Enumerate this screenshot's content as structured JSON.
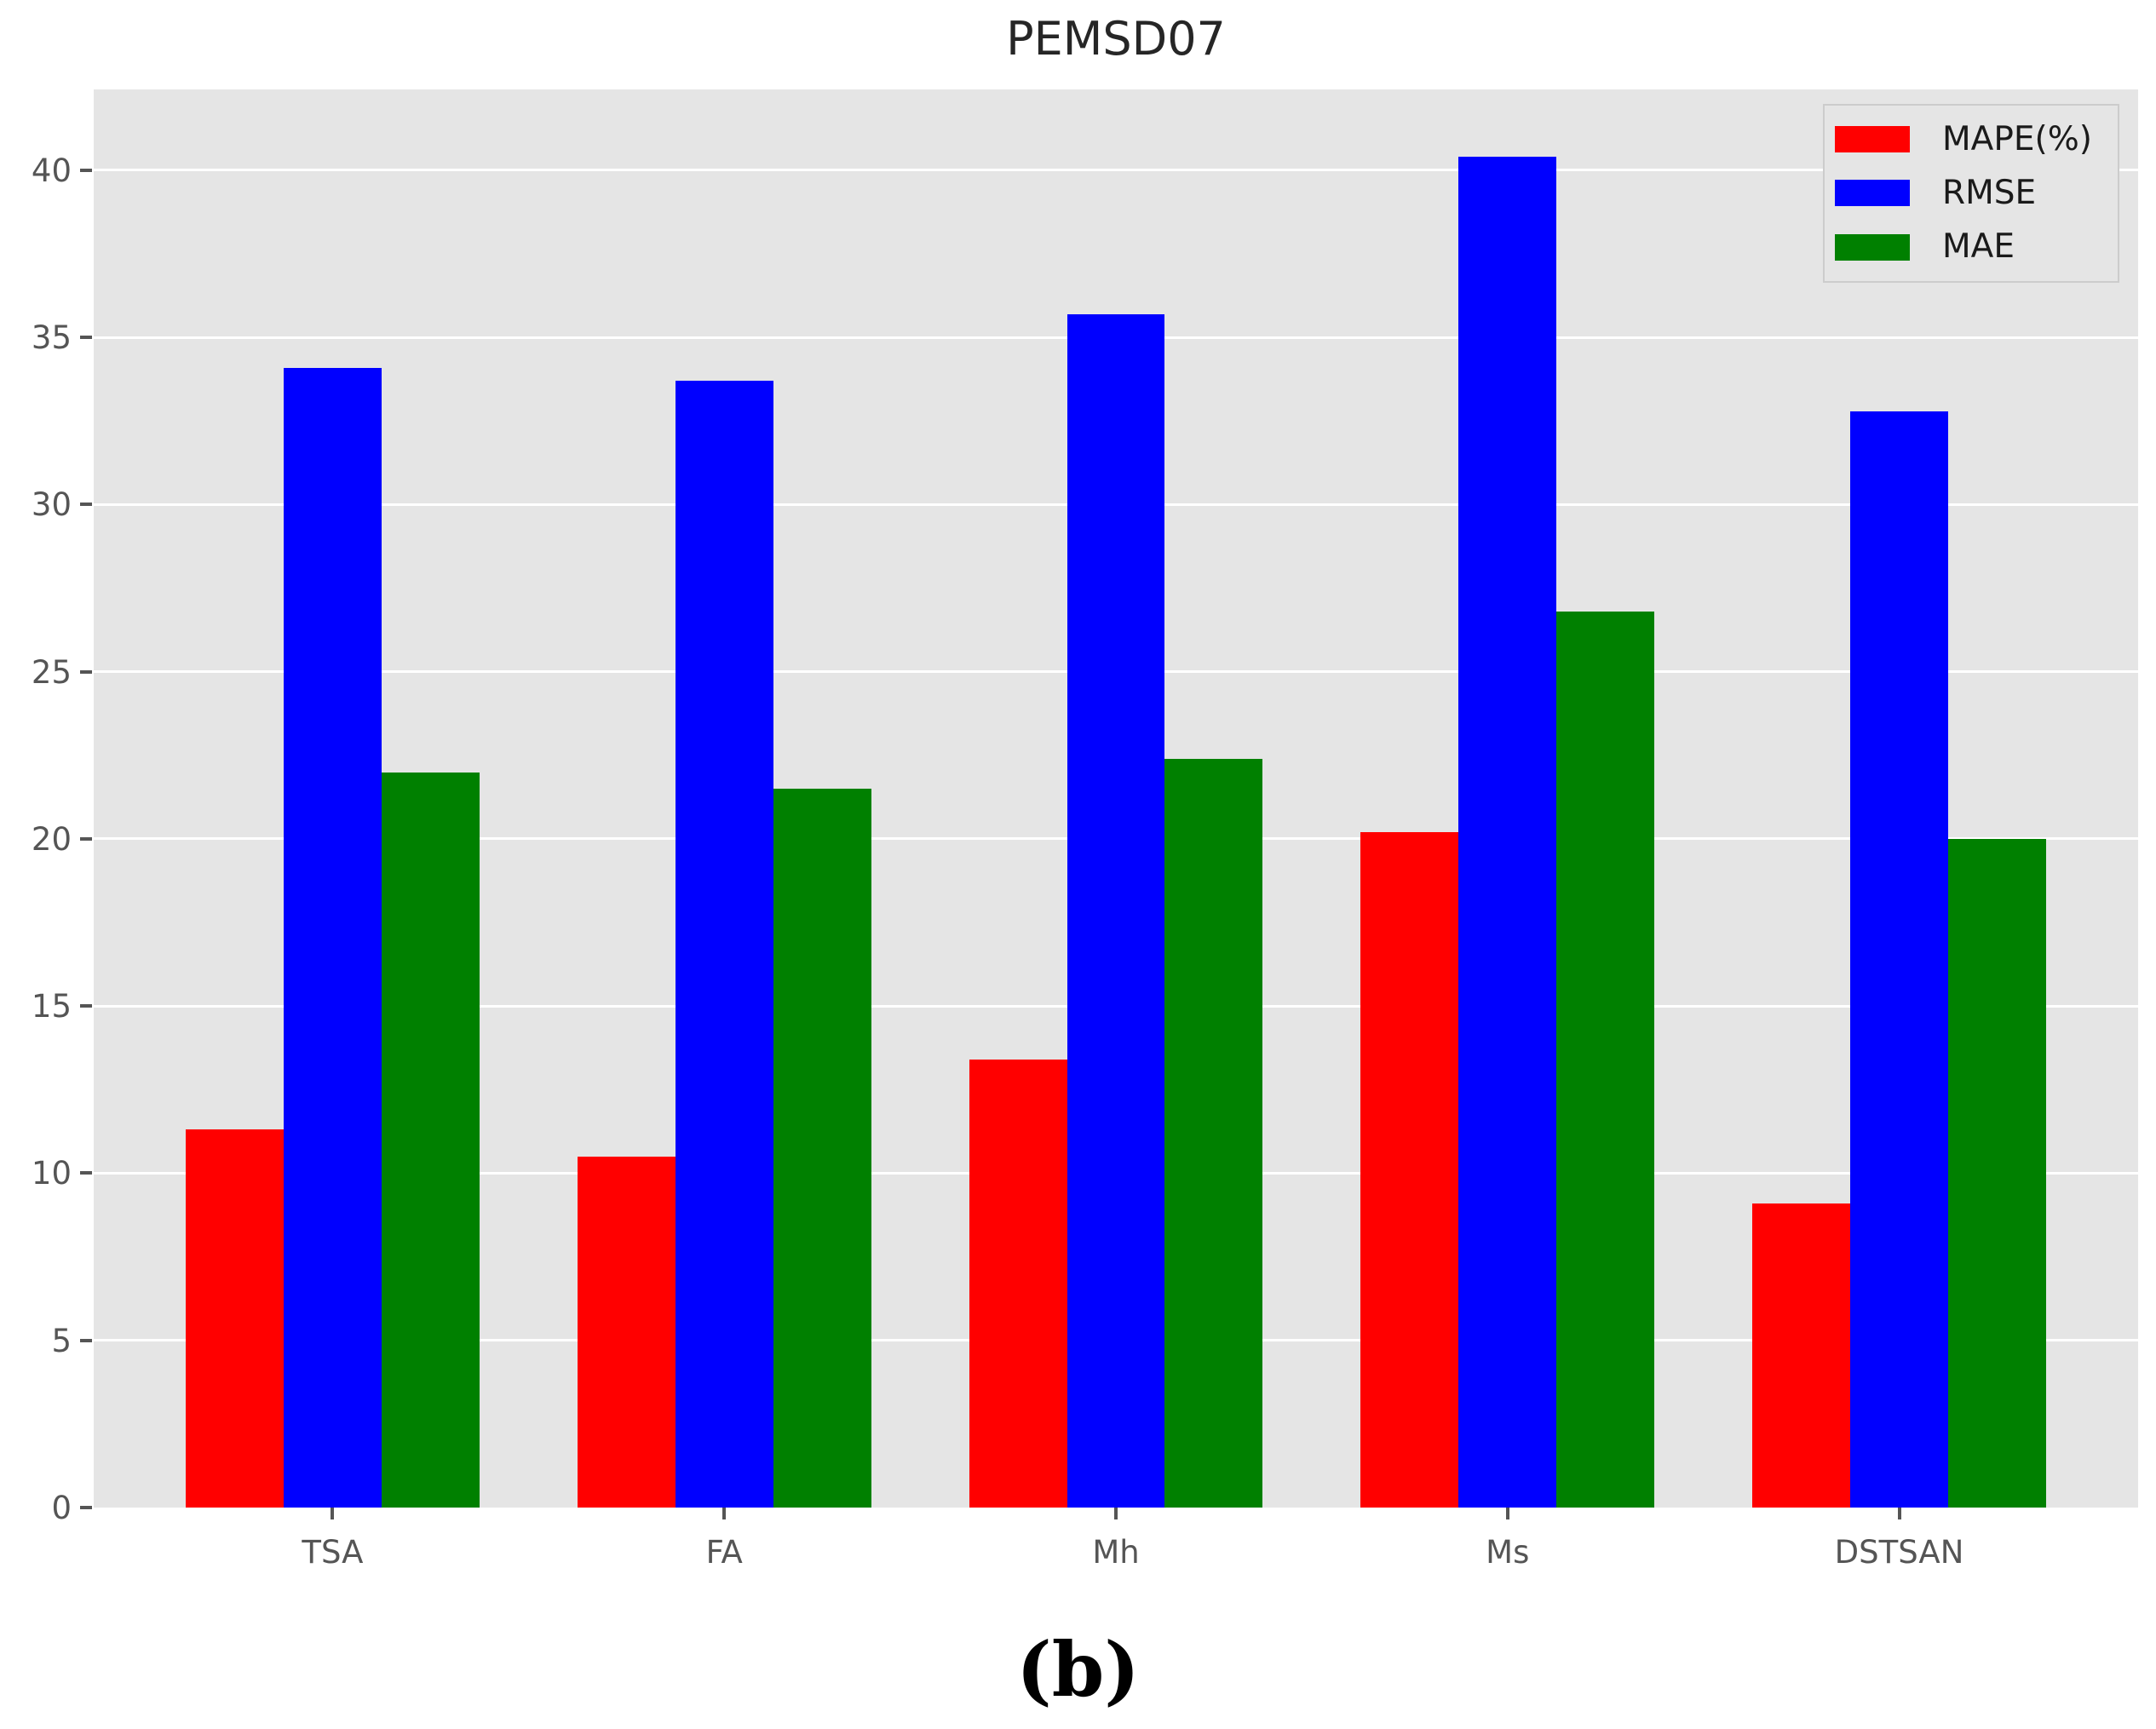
{
  "title": "PEMSD07",
  "caption": "(b)",
  "chart_data": {
    "type": "bar",
    "title": "PEMSD07",
    "categories": [
      "TSA",
      "FA",
      "Mh",
      "Ms",
      "DSTSAN"
    ],
    "series": [
      {
        "name": "MAPE(%)",
        "color": "#ff0000",
        "values": [
          11.3,
          10.5,
          13.4,
          20.2,
          9.1
        ]
      },
      {
        "name": "RMSE",
        "color": "#0000ff",
        "values": [
          34.1,
          33.7,
          35.7,
          40.4,
          32.8
        ]
      },
      {
        "name": "MAE",
        "color": "#008000",
        "values": [
          22.0,
          21.5,
          22.4,
          26.8,
          20.0
        ]
      }
    ],
    "xlabel": "",
    "ylabel": "",
    "ylim": [
      0,
      42.4
    ],
    "yticks": [
      0,
      5,
      10,
      15,
      20,
      25,
      30,
      35,
      40
    ],
    "grid": true,
    "grid_color": "#ffffff",
    "plot_background": "#e5e5e5",
    "tick_label_color": "#555555",
    "legend_position": "upper right",
    "legend_labels": [
      "MAPE(%)",
      "RMSE",
      "MAE"
    ]
  }
}
